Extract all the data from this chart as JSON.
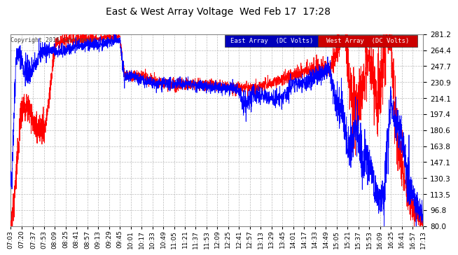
{
  "title": "East & West Array Voltage  Wed Feb 17  17:28",
  "copyright": "Copyright 2016 Cartronics.com",
  "legend_east": "East Array  (DC Volts)",
  "legend_west": "West Array  (DC Volts)",
  "east_color": "#0000ff",
  "west_color": "#ff0000",
  "legend_east_bg": "#0000bb",
  "legend_west_bg": "#cc0000",
  "bg_color": "#ffffff",
  "plot_bg": "#ffffff",
  "grid_color": "#bbbbbb",
  "ylim": [
    80.0,
    281.2
  ],
  "yticks": [
    80.0,
    96.8,
    113.5,
    130.3,
    147.1,
    163.8,
    180.6,
    197.4,
    214.1,
    230.9,
    247.7,
    264.4,
    281.2
  ],
  "xtick_labels": [
    "07:03",
    "07:20",
    "07:37",
    "07:53",
    "08:09",
    "08:25",
    "08:41",
    "08:57",
    "09:13",
    "09:29",
    "09:45",
    "10:01",
    "10:17",
    "10:33",
    "10:49",
    "11:05",
    "11:21",
    "11:37",
    "11:53",
    "12:09",
    "12:25",
    "12:41",
    "12:57",
    "13:13",
    "13:29",
    "13:45",
    "14:01",
    "14:17",
    "14:33",
    "14:49",
    "15:05",
    "15:21",
    "15:37",
    "15:53",
    "16:09",
    "16:25",
    "16:41",
    "16:57",
    "17:13"
  ]
}
